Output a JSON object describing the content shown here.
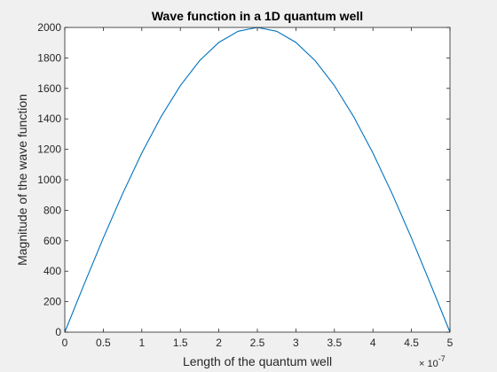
{
  "figure": {
    "background": "#f0f0f0",
    "axes_background": "#ffffff",
    "line_color": "#0072bd",
    "axis_color": "#262626"
  },
  "chart_data": {
    "type": "line",
    "title": "Wave function in a 1D quantum well",
    "xlabel": "Length of the quantum well",
    "ylabel": "Magnitude of the wave function",
    "x_exponent_label": "× 10",
    "x_exponent_power": "-7",
    "xlim": [
      0,
      5e-07
    ],
    "ylim": [
      0,
      2000
    ],
    "xticks": [
      0,
      5e-08,
      1e-07,
      1.5e-07,
      2e-07,
      2.5e-07,
      3e-07,
      3.5e-07,
      4e-07,
      4.5e-07,
      5e-07
    ],
    "xtick_labels": [
      "0",
      "0.5",
      "1",
      "1.5",
      "2",
      "2.5",
      "3",
      "3.5",
      "4",
      "4.5",
      "5"
    ],
    "yticks": [
      0,
      200,
      400,
      600,
      800,
      1000,
      1200,
      1400,
      1600,
      1800,
      2000
    ],
    "ytick_labels": [
      "0",
      "200",
      "400",
      "600",
      "800",
      "1000",
      "1200",
      "1400",
      "1600",
      "1800",
      "2000"
    ],
    "grid": false,
    "box": true,
    "series": [
      {
        "x": [
          0,
          2.5e-08,
          5e-08,
          7.5e-08,
          1e-07,
          1.25e-07,
          1.5e-07,
          1.75e-07,
          2e-07,
          2.25e-07,
          2.5e-07,
          2.75e-07,
          3e-07,
          3.25e-07,
          3.5e-07,
          3.75e-07,
          4e-07,
          4.25e-07,
          4.5e-07,
          4.75e-07,
          5e-07
        ],
        "y": [
          0,
          313,
          618,
          908,
          1176,
          1414,
          1618,
          1782,
          1902,
          1975,
          2000,
          1975,
          1902,
          1782,
          1618,
          1414,
          1176,
          908,
          618,
          313,
          0
        ]
      }
    ]
  }
}
